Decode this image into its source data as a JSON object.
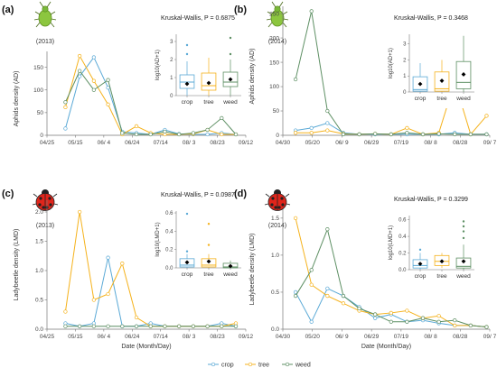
{
  "colors": {
    "crop": "#5aa9d6",
    "tree": "#f5b21c",
    "weed": "#5d8f63",
    "axis": "#777777",
    "text": "#333333"
  },
  "legend": {
    "items": [
      "crop",
      "tree",
      "weed"
    ]
  },
  "panels": [
    {
      "letter": "(a)",
      "year": "(2013)",
      "icon": "aphid-icon",
      "ylabel": "Aphids density (AD)",
      "xlabel": "",
      "xticks": [
        "04/25",
        "05/15",
        "06/ 4",
        "06/24",
        "07/14",
        "08/ 3",
        "08/23",
        "09/12"
      ],
      "yticks": [
        "0",
        "50",
        "100",
        "150"
      ],
      "inset": {
        "title": "Kruskal-Wallis, P = 0.6875",
        "ylabel": "log10(AD+1)",
        "yticks": [
          "0",
          "1",
          "2",
          "3"
        ],
        "categories": [
          "crop",
          "tree",
          "weed"
        ]
      }
    },
    {
      "letter": "(b)",
      "year": "(2014)",
      "icon": "aphid-icon",
      "ylabel": "Aphids density (AD)",
      "xlabel": "",
      "xticks": [
        "04/30",
        "05/20",
        "06/ 9",
        "06/29",
        "07/19",
        "08/ 8",
        "08/28",
        "09/ 7"
      ],
      "yticks": [
        "0",
        "50",
        "100",
        "150",
        "200",
        "250"
      ],
      "inset": {
        "title": "Kruskal-Wallis, P = 0.3468",
        "ylabel": "log10(AD+1)",
        "yticks": [
          "0",
          "1",
          "2",
          "3"
        ],
        "categories": [
          "crop",
          "tree",
          "weed"
        ]
      }
    },
    {
      "letter": "(c)",
      "year": "(2013)",
      "icon": "ladybeetle-icon",
      "ylabel": "Ladybeetle density (LMD)",
      "xlabel": "Date (Month/Day)",
      "xticks": [
        "04/25",
        "05/15",
        "06/ 4",
        "06/24",
        "07/14",
        "08/ 3",
        "08/23",
        "09/12"
      ],
      "yticks": [
        "0.0",
        "0.5",
        "1.0",
        "1.5",
        "2.0"
      ],
      "inset": {
        "title": "Kruskal-Wallis, P = 0.0987",
        "ylabel": "log10(LMD+1)",
        "yticks": [
          "0.0",
          "0.2",
          "0.4",
          "0.6"
        ],
        "categories": [
          "crop",
          "tree",
          "weed"
        ]
      }
    },
    {
      "letter": "(d)",
      "year": "(2014)",
      "icon": "ladybeetle-icon",
      "ylabel": "Ladybeetle density (LMD)",
      "xlabel": "Date (Month/Day)",
      "xticks": [
        "04/30",
        "05/20",
        "06/ 9",
        "06/29",
        "07/19",
        "08/ 8",
        "08/28",
        "09/ 7"
      ],
      "yticks": [
        "0.0",
        "0.5",
        "1.0",
        "1.5"
      ],
      "inset": {
        "title": "Kruskal-Wallis, P = 0.3299",
        "ylabel": "log10(LMD+1)",
        "yticks": [
          "0.0",
          "0.2",
          "0.4",
          "0.6"
        ],
        "categories": [
          "crop",
          "tree",
          "weed"
        ]
      }
    }
  ],
  "chart_data": [
    {
      "type": "line",
      "panel": "(a)",
      "x": [
        "05/ 8",
        "05/18",
        "05/28",
        "06/ 7",
        "06/17",
        "06/27",
        "07/ 7",
        "07/17",
        "07/27",
        "08/ 6",
        "08/16",
        "08/26",
        "09/ 5"
      ],
      "xlim": [
        "04/25",
        "09/12"
      ],
      "ylim": [
        0,
        185
      ],
      "series": [
        {
          "name": "crop",
          "values": [
            15,
            130,
            172,
            105,
            8,
            5,
            2,
            12,
            3,
            2,
            2,
            5,
            2
          ]
        },
        {
          "name": "tree",
          "values": [
            62,
            175,
            120,
            68,
            2,
            20,
            5,
            2,
            2,
            3,
            12,
            2,
            2
          ]
        },
        {
          "name": "weed",
          "values": [
            73,
            142,
            100,
            122,
            5,
            2,
            2,
            8,
            2,
            5,
            12,
            38,
            2
          ]
        }
      ],
      "inset": {
        "type": "box",
        "ylim": [
          0,
          3.4
        ],
        "boxes": [
          {
            "name": "crop",
            "q1": 0.4,
            "median": 0.75,
            "q3": 1.15,
            "whisker_low": 0,
            "whisker_high": 1.9,
            "mean": 0.65,
            "outliers": [
              2.3,
              2.8
            ]
          },
          {
            "name": "tree",
            "q1": 0.3,
            "median": 0.55,
            "q3": 1.25,
            "whisker_low": 0,
            "whisker_high": 2.1,
            "mean": 0.7,
            "outliers": []
          },
          {
            "name": "weed",
            "q1": 0.5,
            "median": 0.75,
            "q3": 1.3,
            "whisker_low": 0,
            "whisker_high": 2.0,
            "mean": 0.9,
            "outliers": [
              2.3,
              3.2
            ]
          }
        ]
      }
    },
    {
      "type": "line",
      "panel": "(b)",
      "x": [
        "05/ 8",
        "05/18",
        "05/28",
        "06/ 7",
        "06/17",
        "06/27",
        "07/ 7",
        "07/17",
        "07/27",
        "08/ 6",
        "08/16",
        "08/26",
        "09/ 5"
      ],
      "xlim": [
        "04/30",
        "09/ 7"
      ],
      "ylim": [
        0,
        265
      ],
      "series": [
        {
          "name": "crop",
          "values": [
            10,
            15,
            25,
            5,
            2,
            2,
            2,
            2,
            2,
            2,
            5,
            2,
            2
          ]
        },
        {
          "name": "tree",
          "values": [
            5,
            5,
            10,
            3,
            2,
            3,
            2,
            15,
            2,
            5,
            110,
            2,
            40
          ]
        },
        {
          "name": "weed",
          "values": [
            115,
            255,
            50,
            2,
            2,
            3,
            2,
            5,
            2,
            3,
            2,
            2,
            2
          ]
        }
      ],
      "inset": {
        "type": "box",
        "ylim": [
          0,
          3.6
        ],
        "boxes": [
          {
            "name": "crop",
            "q1": 0.05,
            "median": 0.15,
            "q3": 0.95,
            "whisker_low": 0,
            "whisker_high": 1.8,
            "mean": 0.5,
            "outliers": []
          },
          {
            "name": "tree",
            "q1": 0.05,
            "median": 0.2,
            "q3": 1.25,
            "whisker_low": 0,
            "whisker_high": 2.0,
            "mean": 0.7,
            "outliers": []
          },
          {
            "name": "weed",
            "q1": 0.2,
            "median": 0.6,
            "q3": 1.9,
            "whisker_low": 0,
            "whisker_high": 3.5,
            "mean": 1.1,
            "outliers": []
          }
        ]
      }
    },
    {
      "type": "line",
      "panel": "(c)",
      "x": [
        "05/ 8",
        "05/18",
        "05/28",
        "06/ 7",
        "06/17",
        "06/27",
        "07/ 7",
        "07/17",
        "07/27",
        "08/ 6",
        "08/16",
        "08/26",
        "09/ 5"
      ],
      "xlim": [
        "04/25",
        "09/12"
      ],
      "ylim": [
        0,
        2.2
      ],
      "series": [
        {
          "name": "crop",
          "values": [
            0.1,
            0.05,
            0.1,
            1.22,
            0.05,
            0.05,
            0.1,
            0.05,
            0.05,
            0.05,
            0.05,
            0.1,
            0.05
          ]
        },
        {
          "name": "tree",
          "values": [
            0.3,
            2.0,
            0.5,
            0.6,
            1.12,
            0.2,
            0.05,
            0.05,
            0.05,
            0.05,
            0.05,
            0.05,
            0.1
          ]
        },
        {
          "name": "weed",
          "values": [
            0.05,
            0.05,
            0.05,
            0.05,
            0.05,
            0.05,
            0.05,
            0.05,
            0.05,
            0.05,
            0.05,
            0.05,
            0.05
          ]
        }
      ],
      "inset": {
        "type": "box",
        "ylim": [
          0,
          0.62
        ],
        "boxes": [
          {
            "name": "crop",
            "q1": 0.01,
            "median": 0.03,
            "q3": 0.1,
            "whisker_low": 0,
            "whisker_high": 0.15,
            "mean": 0.06,
            "outliers": [
              0.18,
              0.59
            ]
          },
          {
            "name": "tree",
            "q1": 0.01,
            "median": 0.03,
            "q3": 0.1,
            "whisker_low": 0,
            "whisker_high": 0.15,
            "mean": 0.07,
            "outliers": [
              0.25,
              0.48
            ]
          },
          {
            "name": "weed",
            "q1": 0.0,
            "median": 0.01,
            "q3": 0.05,
            "whisker_low": 0,
            "whisker_high": 0.08,
            "mean": 0.02,
            "outliers": []
          }
        ]
      }
    },
    {
      "type": "line",
      "panel": "(d)",
      "x": [
        "05/ 8",
        "05/18",
        "05/28",
        "06/ 7",
        "06/17",
        "06/27",
        "07/ 7",
        "07/17",
        "07/27",
        "08/ 6",
        "08/16",
        "08/26",
        "09/ 5"
      ],
      "xlim": [
        "04/30",
        "09/ 7"
      ],
      "ylim": [
        0,
        1.62
      ],
      "series": [
        {
          "name": "crop",
          "values": [
            0.5,
            0.1,
            0.55,
            0.45,
            0.3,
            0.15,
            0.2,
            0.1,
            0.12,
            0.08,
            0.05,
            0.05,
            0.03
          ]
        },
        {
          "name": "tree",
          "values": [
            1.5,
            0.6,
            0.45,
            0.35,
            0.25,
            0.2,
            0.22,
            0.25,
            0.15,
            0.18,
            0.05,
            0.05,
            0.03
          ]
        },
        {
          "name": "weed",
          "values": [
            0.45,
            0.8,
            1.35,
            0.45,
            0.28,
            0.2,
            0.1,
            0.1,
            0.15,
            0.1,
            0.12,
            0.05,
            0.03
          ]
        }
      ],
      "inset": {
        "type": "box",
        "ylim": [
          0,
          0.65
        ],
        "boxes": [
          {
            "name": "crop",
            "q1": 0.02,
            "median": 0.05,
            "q3": 0.12,
            "whisker_low": 0,
            "whisker_high": 0.2,
            "mean": 0.07,
            "outliers": [
              0.24
            ]
          },
          {
            "name": "tree",
            "q1": 0.05,
            "median": 0.1,
            "q3": 0.17,
            "whisker_low": 0.02,
            "whisker_high": 0.2,
            "mean": 0.1,
            "outliers": []
          },
          {
            "name": "weed",
            "q1": 0.02,
            "median": 0.04,
            "q3": 0.14,
            "whisker_low": 0,
            "whisker_high": 0.3,
            "mean": 0.1,
            "outliers": [
              0.38,
              0.46,
              0.52,
              0.58
            ]
          }
        ]
      }
    }
  ]
}
